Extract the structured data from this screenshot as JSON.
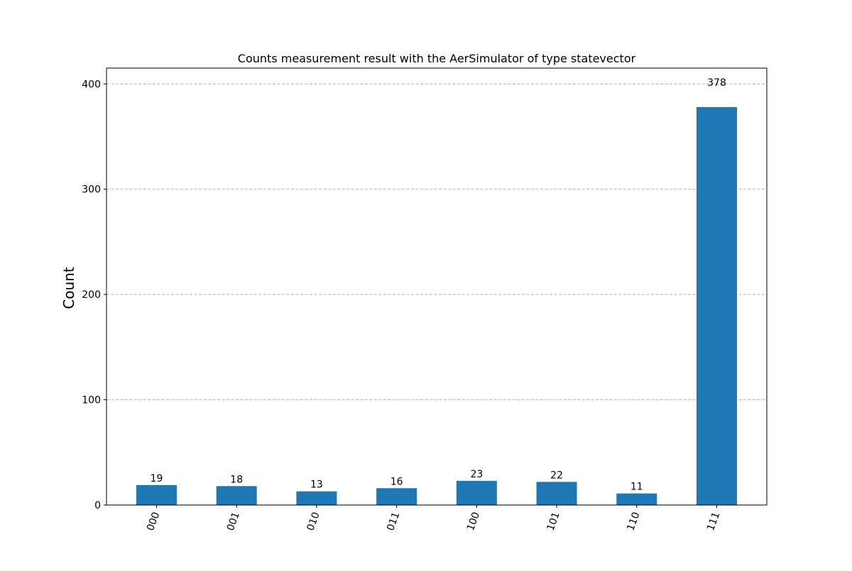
{
  "chart_data": {
    "type": "bar",
    "title": "Counts measurement result with the AerSimulator of type statevector",
    "xlabel": "",
    "ylabel": "Count",
    "categories": [
      "000",
      "001",
      "010",
      "011",
      "100",
      "101",
      "110",
      "111"
    ],
    "values": [
      19,
      18,
      13,
      16,
      23,
      22,
      11,
      378
    ],
    "ylim": [
      0,
      415
    ],
    "yticks": [
      0,
      100,
      200,
      300,
      400
    ],
    "grid": "y-dashed",
    "bar_color": "#1f77b4",
    "x_tick_rotation": "70deg",
    "legend": "none"
  }
}
